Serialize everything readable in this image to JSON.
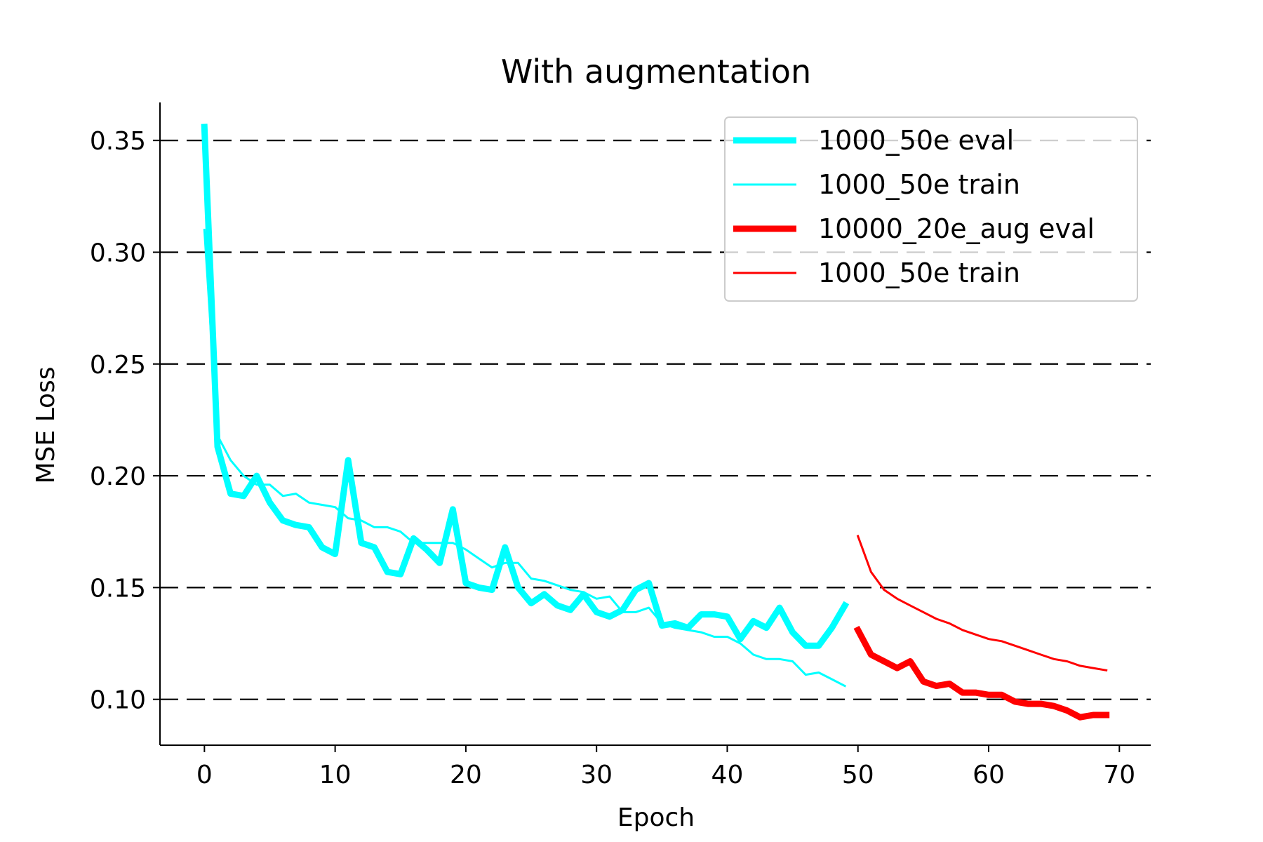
{
  "chart_data": {
    "type": "line",
    "title": "With augmentation",
    "xlabel": "Epoch",
    "ylabel": "MSE Loss",
    "xlim": [
      -3.4,
      72.4
    ],
    "ylim": [
      0.0795,
      0.367
    ],
    "x_ticks": [
      0,
      10,
      20,
      30,
      40,
      50,
      60,
      70
    ],
    "x_tick_labels": [
      "0",
      "10",
      "20",
      "30",
      "40",
      "50",
      "60",
      "70"
    ],
    "y_ticks": [
      0.1,
      0.15,
      0.2,
      0.25,
      0.3,
      0.35
    ],
    "y_tick_labels": [
      "0.10",
      "0.15",
      "0.20",
      "0.25",
      "0.30",
      "0.35"
    ],
    "grid": {
      "axis": "y",
      "style": "dashed",
      "color": "#000000"
    },
    "legend": {
      "position": "top-right"
    },
    "series": [
      {
        "name": "1000_50e eval",
        "color": "#00ffff",
        "weight": "thick",
        "x": [
          0,
          1,
          2,
          3,
          4,
          5,
          6,
          7,
          8,
          9,
          10,
          11,
          12,
          13,
          14,
          15,
          16,
          17,
          18,
          19,
          20,
          21,
          22,
          23,
          24,
          25,
          26,
          27,
          28,
          29,
          30,
          31,
          32,
          33,
          34,
          35,
          36,
          37,
          38,
          39,
          40,
          41,
          42,
          43,
          44,
          45,
          46,
          47,
          48,
          49
        ],
        "y": [
          0.356,
          0.213,
          0.192,
          0.191,
          0.2,
          0.188,
          0.18,
          0.178,
          0.177,
          0.168,
          0.165,
          0.207,
          0.17,
          0.168,
          0.157,
          0.156,
          0.172,
          0.167,
          0.161,
          0.185,
          0.152,
          0.15,
          0.149,
          0.168,
          0.15,
          0.143,
          0.147,
          0.142,
          0.14,
          0.147,
          0.139,
          0.137,
          0.14,
          0.149,
          0.152,
          0.133,
          0.134,
          0.132,
          0.138,
          0.138,
          0.137,
          0.127,
          0.135,
          0.132,
          0.141,
          0.13,
          0.124,
          0.124,
          0.132,
          0.142
        ]
      },
      {
        "name": "1000_50e train",
        "color": "#00ffff",
        "weight": "thin",
        "x": [
          0,
          1,
          2,
          3,
          4,
          5,
          6,
          7,
          8,
          9,
          10,
          11,
          12,
          13,
          14,
          15,
          16,
          17,
          18,
          19,
          20,
          21,
          22,
          23,
          24,
          25,
          26,
          27,
          28,
          29,
          30,
          31,
          32,
          33,
          34,
          35,
          36,
          37,
          38,
          39,
          40,
          41,
          42,
          43,
          44,
          45,
          46,
          47,
          48,
          49
        ],
        "y": [
          0.31,
          0.218,
          0.207,
          0.2,
          0.196,
          0.196,
          0.191,
          0.192,
          0.188,
          0.187,
          0.186,
          0.181,
          0.18,
          0.177,
          0.177,
          0.175,
          0.17,
          0.17,
          0.17,
          0.17,
          0.167,
          0.163,
          0.159,
          0.161,
          0.161,
          0.154,
          0.153,
          0.151,
          0.149,
          0.148,
          0.145,
          0.146,
          0.139,
          0.139,
          0.141,
          0.134,
          0.132,
          0.131,
          0.13,
          0.128,
          0.128,
          0.125,
          0.12,
          0.118,
          0.118,
          0.117,
          0.111,
          0.112,
          0.109,
          0.106
        ]
      },
      {
        "name": "10000_20e_aug eval",
        "color": "#ff0000",
        "weight": "thick",
        "x": [
          50,
          51,
          52,
          53,
          54,
          55,
          56,
          57,
          58,
          59,
          60,
          61,
          62,
          63,
          64,
          65,
          66,
          67,
          68,
          69
        ],
        "y": [
          0.131,
          0.12,
          0.117,
          0.114,
          0.117,
          0.108,
          0.106,
          0.107,
          0.103,
          0.103,
          0.102,
          0.102,
          0.099,
          0.098,
          0.098,
          0.097,
          0.095,
          0.092,
          0.093,
          0.093
        ]
      },
      {
        "name": "1000_50e train",
        "color": "#ff0000",
        "weight": "thin",
        "x": [
          50,
          51,
          52,
          53,
          54,
          55,
          56,
          57,
          58,
          59,
          60,
          61,
          62,
          63,
          64,
          65,
          66,
          67,
          68,
          69
        ],
        "y": [
          0.173,
          0.157,
          0.149,
          0.145,
          0.142,
          0.139,
          0.136,
          0.134,
          0.131,
          0.129,
          0.127,
          0.126,
          0.124,
          0.122,
          0.12,
          0.118,
          0.117,
          0.115,
          0.114,
          0.113
        ]
      }
    ]
  }
}
